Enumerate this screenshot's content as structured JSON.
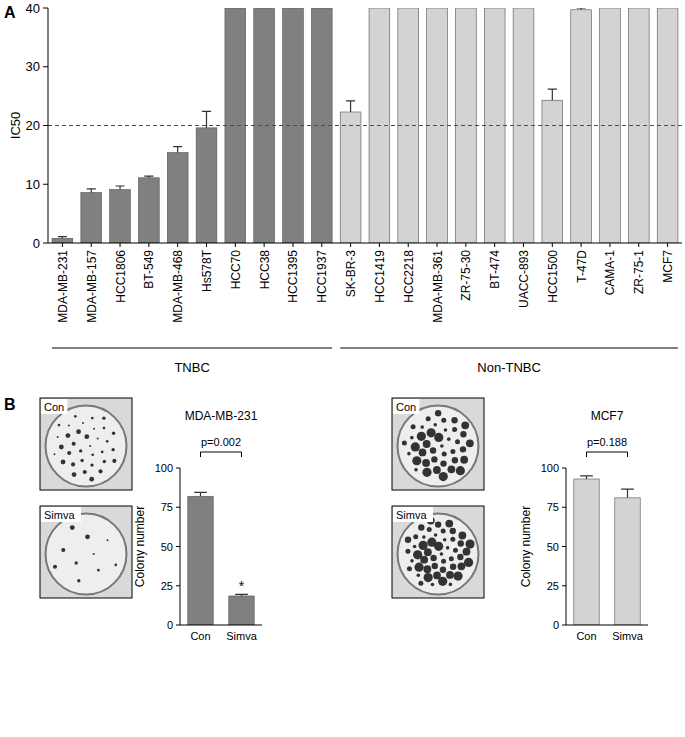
{
  "chart_data": [
    {
      "type": "bar",
      "panel": "A",
      "y_label": "IC50",
      "categories": [
        "MDA-MB-231",
        "MDA-MB-157",
        "HCC1806",
        "BT-549",
        "MDA-MB-468",
        "Hs578T",
        "HCC70",
        "HCC38",
        "HCC1395",
        "HCC1937",
        "SK-BR-3",
        "HCC1419",
        "HCC2218",
        "MDA-MB-361",
        "ZR-75-30",
        "BT-474",
        "UACC-893",
        "HCC1500",
        "T-47D",
        "CAMA-1",
        "ZR-75-1",
        "MCF7"
      ],
      "series": [
        {
          "name": "TNBC",
          "color": "#808080",
          "values": [
            0.8,
            8.6,
            9.1,
            11.1,
            15.4,
            19.6,
            40,
            40,
            40,
            40,
            null,
            null,
            null,
            null,
            null,
            null,
            null,
            null,
            null,
            null,
            null,
            null
          ],
          "errors": [
            0.3,
            0.6,
            0.6,
            0.3,
            1.0,
            2.8,
            null,
            null,
            null,
            null,
            null,
            null,
            null,
            null,
            null,
            null,
            null,
            null,
            null,
            null,
            null,
            null
          ]
        },
        {
          "name": "Non-TNBC",
          "color": "#d3d3d3",
          "values": [
            null,
            null,
            null,
            null,
            null,
            null,
            null,
            null,
            null,
            null,
            22.3,
            40,
            40,
            40,
            40,
            40,
            40,
            24.3,
            39.7,
            40,
            40,
            40
          ],
          "errors": [
            null,
            null,
            null,
            null,
            null,
            null,
            null,
            null,
            null,
            null,
            1.9,
            null,
            null,
            null,
            null,
            null,
            null,
            1.9,
            0.3,
            null,
            null,
            null
          ]
        }
      ],
      "ylim": [
        0,
        40
      ],
      "yticks": [
        0,
        10,
        20,
        30,
        40
      ],
      "reference_lines": [
        {
          "value": 20,
          "color": "#ff0000",
          "line_style": "dashed"
        }
      ]
    },
    {
      "type": "bar",
      "panel": "B",
      "title": "MDA-MB-231",
      "y_label": "Colony number",
      "categories": [
        "Con",
        "Simva"
      ],
      "values": [
        82,
        18.5
      ],
      "errors": [
        2.5,
        1.0
      ],
      "colors": [
        "#808080",
        "#808080"
      ],
      "ylim": [
        0,
        100
      ],
      "yticks": [
        0,
        25,
        50,
        75,
        100
      ],
      "p_label": "p=0.002",
      "significance_mark": "*",
      "plate_labels": [
        "Con",
        "Simva"
      ]
    },
    {
      "type": "bar",
      "title": "MCF7",
      "y_label": "Colony number",
      "categories": [
        "Con",
        "Simva"
      ],
      "values": [
        93,
        81
      ],
      "errors": [
        2.0,
        5.5
      ],
      "colors": [
        "#d3d3d3",
        "#d3d3d3"
      ],
      "ylim": [
        0,
        100
      ],
      "yticks": [
        0,
        25,
        50,
        75,
        100
      ],
      "p_label": "p=0.188",
      "plate_labels": [
        "Con",
        "Simva"
      ]
    }
  ]
}
